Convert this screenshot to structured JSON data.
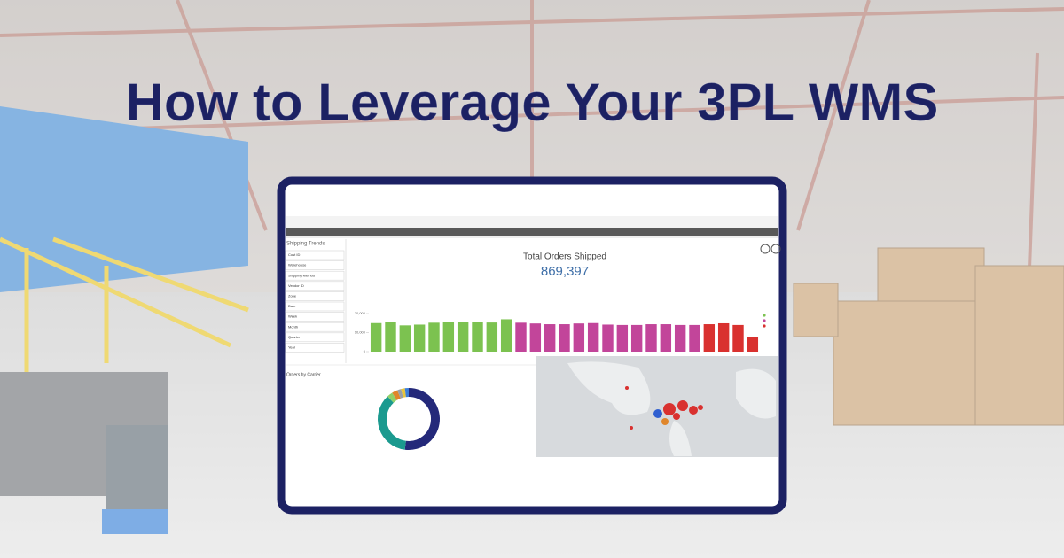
{
  "header": {
    "title": "How to Leverage Your 3PL WMS"
  },
  "dashboard": {
    "panel_title": "Shipping Trends",
    "filters": [
      "Cost ID",
      "Warehouse",
      "Shipping Method",
      "Vendor ID",
      "Zone",
      "Date",
      "Week",
      "Month",
      "Quarter",
      "Year"
    ],
    "kpi_label": "Total Orders Shipped",
    "kpi_value": "869,397",
    "bar_chart": {
      "type": "bar",
      "ylim": [
        0,
        22000
      ],
      "yticks": [
        {
          "value": 0,
          "label": "0"
        },
        {
          "value": 10000,
          "label": "10,000"
        },
        {
          "value": 20000,
          "label": "20,000"
        }
      ],
      "series": [
        {
          "color": "#7cc250",
          "values": [
            15000,
            15500,
            13800,
            14200,
            15200,
            15600,
            15400,
            15600,
            15300,
            17000
          ]
        },
        {
          "color": "#c2459a",
          "values": [
            15200,
            14800,
            14400,
            14400,
            14800,
            15000,
            14200,
            14000,
            14000,
            14400,
            14400,
            14000,
            14000
          ]
        },
        {
          "color": "#d9312f",
          "values": [
            14400,
            14900,
            14000,
            7500
          ]
        }
      ]
    },
    "donut": {
      "title": "Orders by Carrier",
      "type": "pie",
      "values": [
        52,
        36,
        3,
        3,
        2,
        2,
        2
      ],
      "colors": [
        "#24297a",
        "#1b9a8f",
        "#8fd16a",
        "#e0862b",
        "#9aa0a6",
        "#e8c53a",
        "#3b7dd8"
      ]
    }
  }
}
